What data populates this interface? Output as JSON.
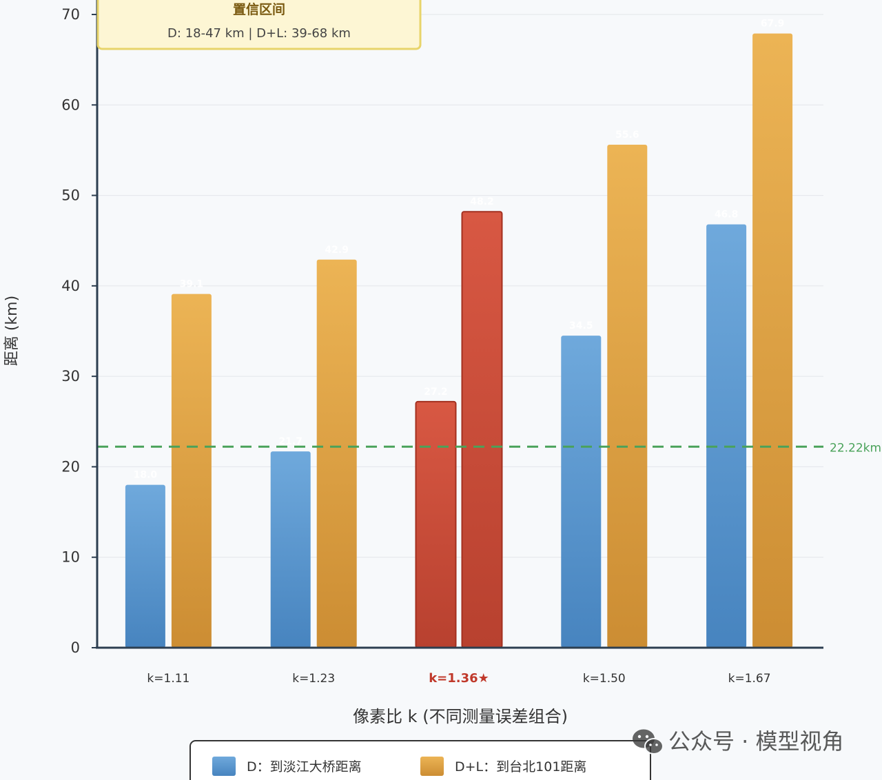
{
  "chart_data": {
    "type": "bar",
    "categories": [
      "k=1.11",
      "k=1.23",
      "k=1.36★",
      "k=1.50",
      "k=1.67"
    ],
    "highlight_index": 2,
    "series": [
      {
        "name": "D：到淡江大桥距离",
        "values": [
          18.0,
          21.7,
          27.2,
          34.5,
          46.8
        ],
        "color": "#5b9bd5"
      },
      {
        "name": "D+L：到台北101距离",
        "values": [
          39.1,
          42.9,
          48.2,
          55.6,
          67.9
        ],
        "color": "#e0a040"
      }
    ],
    "highlight_color": "#cc4a3a",
    "xlabel": "像素比 k (不同测量误差组合)",
    "ylabel": "距离 (km)",
    "ylim": [
      0,
      70
    ],
    "yticks": [
      "0",
      "10",
      "20",
      "30",
      "40",
      "50",
      "60",
      "70"
    ],
    "grid": true,
    "reference_line": {
      "value": 22.22,
      "label": "22.22km",
      "color": "#4aa25a"
    },
    "legend_position": "bottom",
    "annotation": {
      "title": "置信区间",
      "text": "D: 18-47 km | D+L: 39-68 km"
    }
  },
  "watermark": {
    "text": "公众号 · 模型视角",
    "icon": "wechat-icon"
  }
}
